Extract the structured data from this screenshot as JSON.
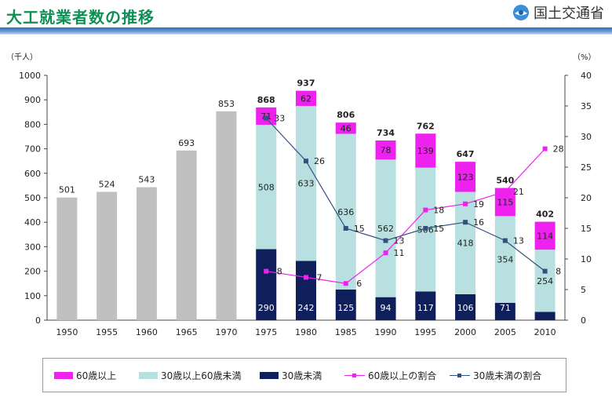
{
  "header": {
    "title": "大工就業者数の推移",
    "org_name": "国土交通省"
  },
  "chart_data": {
    "type": "bar",
    "ylabel_left": "（千人）",
    "ylabel_right": "（%）",
    "ylim_left": [
      0,
      1000
    ],
    "ylim_right": [
      0,
      40
    ],
    "yticks_left": [
      0,
      100,
      200,
      300,
      400,
      500,
      600,
      700,
      800,
      900,
      1000
    ],
    "yticks_right": [
      0,
      5,
      10,
      15,
      20,
      25,
      30,
      35,
      40
    ],
    "categories": [
      "1950",
      "1955",
      "1960",
      "1965",
      "1970",
      "1975",
      "1980",
      "1985",
      "1990",
      "1995",
      "2000",
      "2005",
      "2010"
    ],
    "totals": [
      501,
      524,
      543,
      693,
      853,
      868,
      937,
      806,
      734,
      762,
      647,
      540,
      402
    ],
    "stacked_series": [
      {
        "name": "30歳未満",
        "color": "#0f1f5c",
        "values": [
          null,
          null,
          null,
          null,
          null,
          290,
          242,
          125,
          94,
          117,
          106,
          71,
          34
        ]
      },
      {
        "name": "30歳以上60歳未満",
        "color": "#b8e0e0",
        "values": [
          null,
          null,
          null,
          null,
          null,
          508,
          633,
          636,
          562,
          506,
          418,
          354,
          254
        ]
      },
      {
        "name": "60歳以上",
        "color": "#ee22ee",
        "values": [
          null,
          null,
          null,
          null,
          null,
          71,
          62,
          46,
          78,
          139,
          123,
          115,
          114
        ]
      }
    ],
    "total_only_color": "#c0c0c0",
    "line_series": [
      {
        "name": "60歳以上の割合",
        "color": "#ee22ee",
        "axis": "right",
        "values": [
          null,
          null,
          null,
          null,
          null,
          8,
          7,
          6,
          11,
          18,
          19,
          21,
          28
        ]
      },
      {
        "name": "30歳未満の割合",
        "color": "#34507e",
        "axis": "right",
        "values": [
          null,
          null,
          null,
          null,
          null,
          33,
          26,
          15,
          13,
          15,
          16,
          13,
          8
        ]
      }
    ],
    "legend": {
      "position": "bottom",
      "items": [
        {
          "label": "60歳以上",
          "kind": "bar",
          "color": "#ee22ee"
        },
        {
          "label": "30歳以上60歳未満",
          "kind": "bar",
          "color": "#b8e0e0"
        },
        {
          "label": "30歳未満",
          "kind": "bar",
          "color": "#0f1f5c"
        },
        {
          "label": "60歳以上の割合",
          "kind": "line",
          "color": "#ee22ee"
        },
        {
          "label": "30歳未満の割合",
          "kind": "line",
          "color": "#34507e"
        }
      ]
    },
    "grid": false
  }
}
